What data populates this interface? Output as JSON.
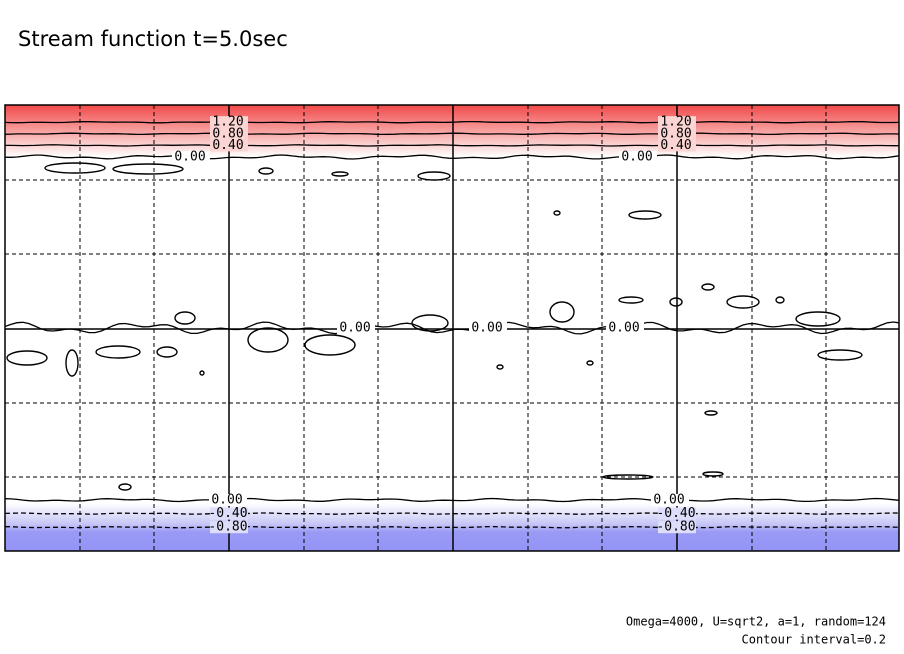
{
  "chart_data": {
    "type": "contour",
    "title": "Stream function t=5.0sec",
    "levels": [
      {
        "value": 1.2,
        "label": "1.20"
      },
      {
        "value": 0.8,
        "label": "0.80"
      },
      {
        "value": 0.4,
        "label": "0.40"
      },
      {
        "value": 0,
        "label": "0.00"
      },
      {
        "value": -0.4,
        "label": "-0.40"
      },
      {
        "value": -0.8,
        "label": "-0.80"
      }
    ],
    "notes": [
      "Omega=4000, U=sqrt2, a=1, random=124",
      "Contour interval=0.2"
    ]
  }
}
